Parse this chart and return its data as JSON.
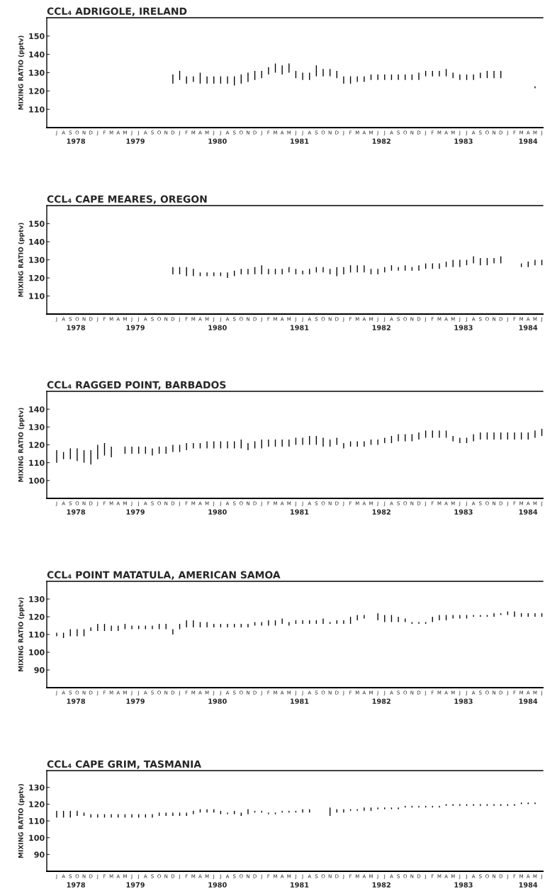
{
  "chart_data": [
    {
      "type": "bar",
      "title": "CCL₄ ADRIGOLE, IRELAND",
      "ylabel": "MIXING RATIO (pptv)",
      "color": "#000000",
      "categories": [
        "J",
        "A",
        "S",
        "O",
        "N",
        "D",
        "J",
        "F",
        "M",
        "A",
        "M",
        "J",
        "J",
        "A",
        "S",
        "O",
        "N",
        "D",
        "J",
        "F",
        "M",
        "A",
        "M",
        "J",
        "J",
        "A",
        "S",
        "O",
        "N",
        "D",
        "J",
        "F",
        "M",
        "A",
        "M",
        "J",
        "J",
        "A",
        "S",
        "O",
        "N",
        "D",
        "J",
        "F",
        "M",
        "A",
        "M",
        "J",
        "J",
        "A",
        "S",
        "O",
        "N",
        "D",
        "J",
        "F",
        "M",
        "A",
        "M",
        "J",
        "J",
        "A",
        "S",
        "O",
        "N",
        "D",
        "J",
        "F",
        "M",
        "A",
        "M",
        "J"
      ],
      "base": [
        null,
        null,
        null,
        null,
        null,
        null,
        null,
        null,
        null,
        null,
        null,
        null,
        null,
        null,
        null,
        null,
        null,
        124,
        126,
        124,
        125,
        124,
        124,
        124,
        124,
        124,
        123,
        124,
        125,
        126,
        127,
        129,
        130,
        129,
        130,
        127,
        126,
        126,
        128,
        128,
        128,
        127,
        124,
        124,
        125,
        125,
        126,
        126,
        126,
        126,
        126,
        126,
        126,
        126,
        128,
        128,
        128,
        128,
        127,
        126,
        126,
        126,
        127,
        127,
        127,
        127,
        null,
        null,
        null,
        null,
        121.5,
        null
      ],
      "values": [
        null,
        null,
        null,
        null,
        null,
        null,
        null,
        null,
        null,
        null,
        null,
        null,
        null,
        null,
        null,
        null,
        null,
        5,
        5,
        4,
        3,
        6,
        4,
        4,
        4,
        4,
        5,
        5,
        5,
        5,
        4,
        4,
        5,
        5,
        5,
        4,
        4,
        4,
        6,
        4,
        4,
        4,
        4,
        4,
        3,
        3,
        3,
        3,
        3,
        3,
        3,
        3,
        3,
        4,
        3,
        3,
        3,
        4,
        3,
        3,
        3,
        3,
        3,
        4,
        4,
        4,
        null,
        null,
        null,
        null,
        1,
        null
      ],
      "ylim": [
        100,
        160
      ],
      "yticks": [
        110,
        120,
        130,
        140,
        150
      ],
      "x2lim": [
        "1978-06-02",
        "1984-06-20"
      ],
      "x2ticks": [
        {
          "value": "1978-10-10",
          "label": "1978"
        },
        {
          "value": "1979-07",
          "label": "1979"
        },
        {
          "value": "1980-07",
          "label": "1980"
        },
        {
          "value": "1981-07",
          "label": "1981"
        },
        {
          "value": "1982-07",
          "label": "1982"
        },
        {
          "value": "1983-07",
          "label": "1983"
        },
        {
          "value": "1984-04-15",
          "label": "1984"
        }
      ]
    },
    {
      "type": "bar",
      "title": "CCL₄ CAPE MEARES, OREGON",
      "ylabel": "MIXING RATIO (pptv)",
      "color": "#000000",
      "categories": [
        "J",
        "A",
        "S",
        "O",
        "N",
        "D",
        "J",
        "F",
        "M",
        "A",
        "M",
        "J",
        "J",
        "A",
        "S",
        "O",
        "N",
        "D",
        "J",
        "F",
        "M",
        "A",
        "M",
        "J",
        "J",
        "A",
        "S",
        "O",
        "N",
        "D",
        "J",
        "F",
        "M",
        "A",
        "M",
        "J",
        "J",
        "A",
        "S",
        "O",
        "N",
        "D",
        "J",
        "F",
        "M",
        "A",
        "M",
        "J",
        "J",
        "A",
        "S",
        "O",
        "N",
        "D",
        "J",
        "F",
        "M",
        "A",
        "M",
        "J",
        "J",
        "A",
        "S",
        "O",
        "N",
        "D",
        "J",
        "F",
        "M",
        "A",
        "M",
        "J"
      ],
      "base": [
        null,
        null,
        null,
        null,
        null,
        null,
        null,
        null,
        null,
        null,
        null,
        null,
        null,
        null,
        null,
        null,
        null,
        122,
        122,
        121,
        121,
        121,
        121,
        121,
        121,
        120,
        121,
        122,
        122,
        122,
        122,
        122,
        122,
        122,
        123,
        122,
        122,
        122,
        123,
        123,
        122,
        121,
        122,
        123,
        123,
        123,
        122,
        122,
        123,
        124,
        124,
        124,
        124,
        124,
        125,
        125,
        125,
        126,
        126,
        126,
        127,
        128,
        127,
        127,
        128,
        128,
        null,
        null,
        126,
        126,
        127,
        127
      ],
      "values": [
        null,
        null,
        null,
        null,
        null,
        null,
        null,
        null,
        null,
        null,
        null,
        null,
        null,
        null,
        null,
        null,
        null,
        4,
        4,
        5,
        4,
        2,
        2,
        2,
        2,
        3,
        3,
        3,
        3,
        4,
        5,
        3,
        3,
        3,
        3,
        3,
        2,
        3,
        3,
        3,
        3,
        5,
        4,
        4,
        4,
        4,
        3,
        3,
        3,
        3,
        2,
        3,
        2,
        3,
        3,
        3,
        3,
        3,
        4,
        4,
        3,
        4,
        4,
        4,
        3,
        4,
        null,
        null,
        2,
        3,
        3,
        3
      ],
      "ylim": [
        100,
        160
      ],
      "yticks": [
        110,
        120,
        130,
        140,
        150
      ],
      "x2lim": [
        "1978-06-02",
        "1984-06-20"
      ],
      "x2ticks": [
        {
          "value": "1978-10-10",
          "label": "1978"
        },
        {
          "value": "1979-07",
          "label": "1979"
        },
        {
          "value": "1980-07",
          "label": "1980"
        },
        {
          "value": "1981-07",
          "label": "1981"
        },
        {
          "value": "1982-07",
          "label": "1982"
        },
        {
          "value": "1983-07",
          "label": "1983"
        },
        {
          "value": "1984-04-15",
          "label": "1984"
        }
      ]
    },
    {
      "type": "bar",
      "title": "CCL₄ RAGGED POINT, BARBADOS",
      "ylabel": "MIXING RATIO (pptv)",
      "color": "#000000",
      "categories": [
        "J",
        "A",
        "S",
        "O",
        "N",
        "D",
        "J",
        "F",
        "M",
        "A",
        "M",
        "J",
        "J",
        "A",
        "S",
        "O",
        "N",
        "D",
        "J",
        "F",
        "M",
        "A",
        "M",
        "J",
        "J",
        "A",
        "S",
        "O",
        "N",
        "D",
        "J",
        "F",
        "M",
        "A",
        "M",
        "J",
        "J",
        "A",
        "S",
        "O",
        "N",
        "D",
        "J",
        "F",
        "M",
        "A",
        "M",
        "J",
        "J",
        "A",
        "S",
        "O",
        "N",
        "D",
        "J",
        "F",
        "M",
        "A",
        "M",
        "J",
        "J",
        "A",
        "S",
        "O",
        "N",
        "D",
        "J",
        "F",
        "M",
        "A",
        "M",
        "J"
      ],
      "base": [
        110,
        112,
        112,
        111,
        110,
        109,
        112,
        114,
        113,
        null,
        115,
        115,
        115,
        115,
        114,
        115,
        115,
        116,
        116,
        117,
        118,
        118,
        118,
        118,
        118,
        118,
        118,
        118,
        117,
        118,
        118,
        119,
        119,
        119,
        119,
        120,
        120,
        120,
        120,
        119,
        119,
        120,
        118,
        119,
        119,
        119,
        120,
        120,
        121,
        121,
        122,
        122,
        122,
        123,
        124,
        124,
        124,
        124,
        122,
        121,
        121,
        122,
        123,
        123,
        123,
        123,
        123,
        123,
        123,
        123,
        124,
        125
      ],
      "values": [
        7,
        4,
        6,
        7,
        7,
        8,
        8,
        7,
        6,
        null,
        4,
        4,
        4,
        4,
        4,
        4,
        4,
        4,
        4,
        4,
        3,
        3,
        4,
        4,
        4,
        4,
        4,
        5,
        4,
        4,
        5,
        4,
        4,
        4,
        4,
        4,
        4,
        5,
        5,
        5,
        4,
        4,
        3,
        3,
        3,
        3,
        3,
        3,
        3,
        4,
        4,
        4,
        4,
        4,
        4,
        4,
        4,
        4,
        3,
        3,
        3,
        4,
        4,
        4,
        4,
        4,
        4,
        4,
        4,
        4,
        4,
        4
      ],
      "ylim": [
        90,
        150
      ],
      "yticks": [
        100,
        110,
        120,
        130,
        140
      ],
      "x2lim": [
        "1978-06-02",
        "1984-06-20"
      ],
      "x2ticks": [
        {
          "value": "1978-10-10",
          "label": "1978"
        },
        {
          "value": "1979-07",
          "label": "1979"
        },
        {
          "value": "1980-07",
          "label": "1980"
        },
        {
          "value": "1981-07",
          "label": "1981"
        },
        {
          "value": "1982-07",
          "label": "1982"
        },
        {
          "value": "1983-07",
          "label": "1983"
        },
        {
          "value": "1984-04-15",
          "label": "1984"
        }
      ]
    },
    {
      "type": "bar",
      "title": "CCL₄ POINT MATATULA, AMERICAN SAMOA",
      "ylabel": "MIXING RATIO (pptv)",
      "color": "#000000",
      "categories": [
        "J",
        "A",
        "S",
        "O",
        "N",
        "D",
        "J",
        "F",
        "M",
        "A",
        "M",
        "J",
        "J",
        "A",
        "S",
        "O",
        "N",
        "D",
        "J",
        "F",
        "M",
        "A",
        "M",
        "J",
        "J",
        "A",
        "S",
        "O",
        "N",
        "D",
        "J",
        "F",
        "M",
        "A",
        "M",
        "J",
        "J",
        "A",
        "S",
        "O",
        "N",
        "D",
        "J",
        "F",
        "M",
        "A",
        "M",
        "J",
        "J",
        "A",
        "S",
        "O",
        "N",
        "D",
        "J",
        "F",
        "M",
        "A",
        "M",
        "J",
        "J",
        "A",
        "S",
        "O",
        "N",
        "D",
        "J",
        "F",
        "M",
        "A",
        "M",
        "J"
      ],
      "base": [
        109,
        108,
        109,
        109,
        109,
        112,
        112,
        112,
        112,
        112,
        113,
        113,
        113,
        113,
        113,
        113,
        113,
        110,
        113,
        114,
        114,
        114,
        114,
        114,
        114,
        114,
        114,
        114,
        114,
        115,
        115,
        115,
        115,
        116,
        115,
        116,
        116,
        116,
        116,
        116,
        116,
        116,
        116,
        116,
        118,
        119,
        null,
        118,
        117,
        117,
        117,
        117,
        116,
        116,
        116,
        117,
        118,
        118,
        119,
        119,
        119,
        120,
        120,
        120,
        120,
        121,
        121,
        120,
        120,
        120,
        120,
        120
      ],
      "values": [
        2,
        3,
        4,
        4,
        4,
        2,
        4,
        4,
        3,
        3,
        3,
        2,
        2,
        2,
        2,
        3,
        3,
        3,
        3,
        4,
        4,
        3,
        3,
        2,
        2,
        2,
        2,
        2,
        2,
        2,
        2,
        3,
        3,
        3,
        2,
        2,
        2,
        2,
        2,
        3,
        1,
        2,
        2,
        4,
        3,
        2,
        null,
        4,
        4,
        4,
        3,
        2,
        1,
        1,
        1,
        3,
        3,
        3,
        2,
        2,
        2,
        1,
        1,
        1,
        2,
        1,
        2,
        3,
        2,
        2,
        2,
        2
      ],
      "ylim": [
        80,
        140
      ],
      "yticks": [
        90,
        100,
        110,
        120,
        130
      ],
      "x2lim": [
        "1978-06-02",
        "1984-06-20"
      ],
      "x2ticks": [
        {
          "value": "1978-10-10",
          "label": "1978"
        },
        {
          "value": "1979-07",
          "label": "1979"
        },
        {
          "value": "1980-07",
          "label": "1980"
        },
        {
          "value": "1981-07",
          "label": "1981"
        },
        {
          "value": "1982-07",
          "label": "1982"
        },
        {
          "value": "1983-07",
          "label": "1983"
        },
        {
          "value": "1984-04-15",
          "label": "1984"
        }
      ]
    },
    {
      "type": "bar",
      "title": "CCL₄ CAPE GRIM, TASMANIA",
      "ylabel": "MIXING RATIO (pptv)",
      "color": "#000000",
      "categories": [
        "J",
        "A",
        "S",
        "O",
        "N",
        "D",
        "J",
        "F",
        "M",
        "A",
        "M",
        "J",
        "J",
        "A",
        "S",
        "O",
        "N",
        "D",
        "J",
        "F",
        "M",
        "A",
        "M",
        "J",
        "J",
        "A",
        "S",
        "O",
        "N",
        "D",
        "J",
        "F",
        "M",
        "A",
        "M",
        "J",
        "J",
        "A",
        "S",
        "O",
        "N",
        "D",
        "J",
        "F",
        "M",
        "A",
        "M",
        "J",
        "J",
        "A",
        "S",
        "O",
        "N",
        "D",
        "J",
        "F",
        "M",
        "A",
        "M",
        "J",
        "J",
        "A",
        "S",
        "O",
        "N",
        "D",
        "J",
        "F",
        "M",
        "A",
        "M",
        "J"
      ],
      "base": [
        112,
        112,
        112,
        113,
        113,
        112,
        112,
        112,
        112,
        112,
        112,
        112,
        112,
        112,
        112,
        113,
        113,
        113,
        113,
        113,
        114,
        115,
        115,
        115,
        114,
        114,
        114,
        113,
        114,
        115,
        115,
        114,
        114,
        115,
        115,
        115,
        115,
        115,
        null,
        null,
        113,
        115,
        115,
        116,
        116,
        116,
        116,
        117,
        117,
        117,
        117,
        118,
        118,
        118,
        118,
        118,
        118,
        119,
        119,
        119,
        119,
        119,
        119,
        119,
        119,
        119,
        119,
        119,
        120,
        120,
        120,
        null
      ],
      "values": [
        4,
        4,
        4,
        3,
        2,
        2,
        2,
        2,
        2,
        2,
        2,
        2,
        2,
        2,
        2,
        2,
        2,
        2,
        2,
        2,
        2,
        2,
        2,
        2,
        2,
        1,
        2,
        2,
        3,
        1,
        1,
        1,
        1,
        1,
        1,
        1,
        2,
        2,
        null,
        null,
        5,
        2,
        2,
        1,
        1,
        2,
        2,
        1,
        1,
        1,
        1,
        1,
        1,
        1,
        1,
        1,
        1,
        1,
        1,
        1,
        1,
        1,
        1,
        1,
        1,
        1,
        1,
        1,
        1,
        1,
        1,
        null
      ],
      "ylim": [
        80,
        140
      ],
      "yticks": [
        90,
        100,
        110,
        120,
        130
      ],
      "x2lim": [
        "1978-06-02",
        "1984-06-20"
      ],
      "x2ticks": [
        {
          "value": "1978-10-10",
          "label": "1978"
        },
        {
          "value": "1979-07",
          "label": "1979"
        },
        {
          "value": "1980-07",
          "label": "1980"
        },
        {
          "value": "1981-07",
          "label": "1981"
        },
        {
          "value": "1982-07",
          "label": "1982"
        },
        {
          "value": "1983-07",
          "label": "1983"
        },
        {
          "value": "1984-04-15",
          "label": "1984"
        }
      ]
    }
  ]
}
